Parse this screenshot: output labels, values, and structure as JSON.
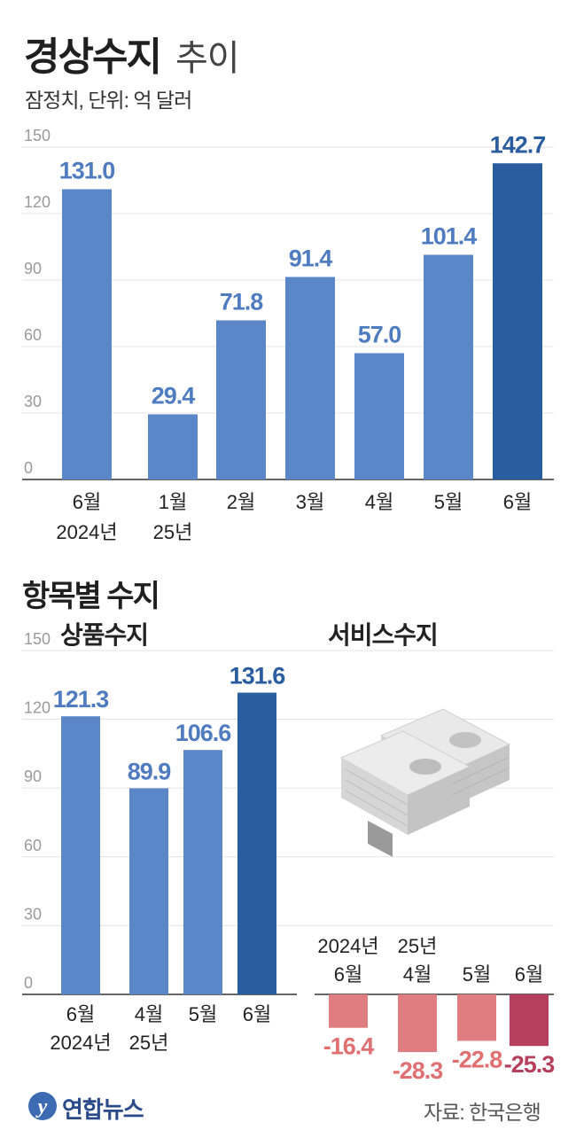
{
  "header": {
    "title": "경상수지",
    "subtitle": "추이",
    "note": "잠정치, 단위: 억 달러"
  },
  "section2": {
    "title": "항목별 수지",
    "left_title": "상품수지",
    "right_title": "서비스수지"
  },
  "footer": {
    "logo_text": "연합뉴스",
    "source": "자료: 한국은행"
  },
  "colors": {
    "bar": "#5b86c7",
    "bar_highlight": "#2a5d9f",
    "label": "#4f7cc0",
    "label_highlight": "#2a5d9f",
    "neg_bar": "#e07d80",
    "neg_bar_highlight": "#b63f5e",
    "neg_label": "#e06f72",
    "neg_label_highlight": "#b63f5e"
  },
  "chart_data": [
    {
      "type": "bar",
      "name": "경상수지",
      "ylim": [
        0,
        150
      ],
      "yticks": [
        "0",
        "30",
        "60",
        "90",
        "120",
        "150"
      ],
      "categories": [
        [
          "6월",
          "2024년"
        ],
        [
          "1월",
          "25년"
        ],
        [
          "2월"
        ],
        [
          "3월"
        ],
        [
          "4월"
        ],
        [
          "5월"
        ],
        [
          "6월"
        ]
      ],
      "values": [
        131.0,
        29.4,
        71.8,
        91.4,
        57.0,
        101.4,
        142.7
      ],
      "value_labels": [
        "131.0",
        "29.4",
        "71.8",
        "91.4",
        "57.0",
        "101.4",
        "142.7"
      ],
      "highlight_index": 6,
      "grid": true
    },
    {
      "type": "bar",
      "name": "상품수지",
      "ylim": [
        0,
        150
      ],
      "yticks": [
        "0",
        "30",
        "60",
        "90",
        "120",
        "150"
      ],
      "categories": [
        [
          "6월",
          "2024년"
        ],
        [
          "4월",
          "25년"
        ],
        [
          "5월"
        ],
        [
          "6월"
        ]
      ],
      "values": [
        121.3,
        89.9,
        106.6,
        131.6
      ],
      "value_labels": [
        "121.3",
        "89.9",
        "106.6",
        "131.6"
      ],
      "highlight_index": 3,
      "grid": true
    },
    {
      "type": "bar",
      "name": "서비스수지",
      "categories": [
        [
          "2024년",
          "6월"
        ],
        [
          "25년",
          "4월"
        ],
        [
          "5월"
        ],
        [
          "6월"
        ]
      ],
      "values": [
        -16.4,
        -28.3,
        -22.8,
        -25.3
      ],
      "value_labels": [
        "-16.4",
        "-28.3",
        "-22.8",
        "-25.3"
      ],
      "highlight_index": 3
    }
  ]
}
